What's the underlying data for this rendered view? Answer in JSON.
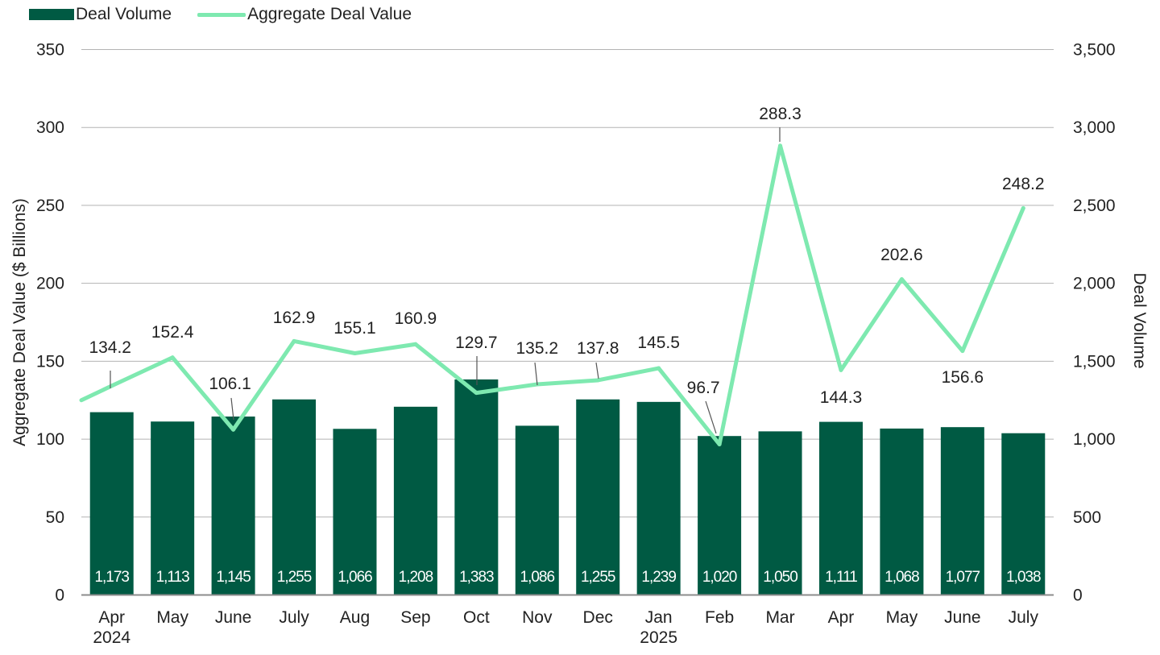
{
  "chart_data": {
    "type": "bar+line",
    "categories": [
      "Apr",
      "May",
      "June",
      "July",
      "Aug",
      "Sep",
      "Oct",
      "Nov",
      "Dec",
      "Jan",
      "Feb",
      "Mar",
      "Apr",
      "May",
      "June",
      "July"
    ],
    "year_labels": [
      "2024",
      "",
      "",
      "",
      "",
      "",
      "",
      "",
      "",
      "2025",
      "",
      "",
      "",
      "",
      "",
      ""
    ],
    "series": [
      {
        "name": "Deal Volume",
        "type": "bar",
        "axis": "right",
        "color": "#005a43",
        "values": [
          1173,
          1113,
          1145,
          1255,
          1066,
          1208,
          1383,
          1086,
          1255,
          1239,
          1020,
          1050,
          1111,
          1068,
          1077,
          1038
        ],
        "labels": [
          "1,173",
          "1,113",
          "1,145",
          "1,255",
          "1,066",
          "1,208",
          "1,383",
          "1,086",
          "1,255",
          "1,239",
          "1,020",
          "1,050",
          "1,111",
          "1,068",
          "1,077",
          "1,038"
        ]
      },
      {
        "name": "Aggregate Deal Value",
        "type": "line",
        "axis": "left",
        "color": "#7ee9b0",
        "values": [
          134.2,
          152.4,
          106.1,
          162.9,
          155.1,
          160.9,
          129.7,
          135.2,
          137.8,
          145.5,
          96.7,
          288.3,
          144.3,
          202.6,
          156.6,
          248.2
        ],
        "labels": [
          "134.2",
          "152.4",
          "106.1",
          "162.9",
          "155.1",
          "160.9",
          "129.7",
          "135.2",
          "137.8",
          "145.5",
          "96.7",
          "288.3",
          "144.3",
          "202.6",
          "156.6",
          "248.2"
        ],
        "line_start_value": 125
      }
    ],
    "left_axis": {
      "label": "Aggregate Deal Value ($ Billions)",
      "ylim": [
        0,
        350
      ],
      "ticks": [
        "0",
        "50",
        "100",
        "150",
        "200",
        "250",
        "300",
        "350"
      ]
    },
    "right_axis": {
      "label": "Deal Volume",
      "ylim": [
        0,
        3500
      ],
      "ticks": [
        "0",
        "500",
        "1,000",
        "1,500",
        "2,000",
        "2,500",
        "3,000",
        "3,500"
      ]
    },
    "grid": true,
    "legend_position": "top-left"
  }
}
